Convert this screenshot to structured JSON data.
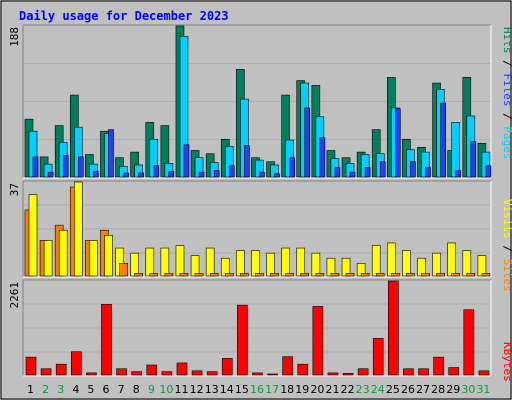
{
  "chart_data": {
    "type": "bar",
    "title": "Daily usage for December 2023",
    "categories": [
      "1",
      "2",
      "3",
      "4",
      "5",
      "6",
      "7",
      "8",
      "9",
      "10",
      "11",
      "12",
      "13",
      "14",
      "15",
      "16",
      "17",
      "18",
      "19",
      "20",
      "21",
      "22",
      "23",
      "24",
      "25",
      "26",
      "27",
      "28",
      "29",
      "30",
      "31"
    ],
    "weekend_days": [
      "2",
      "3",
      "9",
      "10",
      "16",
      "17",
      "23",
      "24",
      "30",
      "31"
    ],
    "colors": {
      "background": "#c0c0c0",
      "hits": "#007f5f",
      "files": "#00d0ff",
      "pages": "#2040ff",
      "visits": "#ff8000",
      "sites": "#ffff00",
      "kbytes": "#ff0000",
      "weekday_label": "#000000",
      "weekend_label": "#00a040",
      "title": "#0000ff"
    },
    "panels": [
      {
        "name": "hits-files-pages",
        "max_label": "188",
        "ylim": [
          0,
          188
        ],
        "legend": [
          {
            "label": "Hits",
            "color": "#007f5f"
          },
          {
            "label": "Files",
            "color": "#2040ff"
          },
          {
            "label": "Pages",
            "color": "#00d0ff"
          }
        ],
        "series": [
          {
            "name": "Hits",
            "values": [
              72,
              25,
              64,
              102,
              28,
              57,
              24,
              31,
              68,
              64,
              188,
              33,
              29,
              47,
              134,
              24,
              19,
              102,
              120,
              114,
              33,
              24,
              31,
              59,
              124,
              47,
              37,
              117,
              33,
              124,
              42
            ]
          },
          {
            "name": "Files",
            "values": [
              57,
              16,
              43,
              62,
              16,
              54,
              13,
              15,
              47,
              17,
              175,
              24,
              18,
              38,
              97,
              21,
              15,
              46,
              117,
              75,
              23,
              17,
              28,
              29,
              86,
              34,
              31,
              109,
              68,
              76,
              31
            ]
          },
          {
            "name": "Pages",
            "values": [
              25,
              6,
              27,
              25,
              7,
              59,
              5,
              5,
              14,
              7,
              40,
              6,
              8,
              14,
              39,
              6,
              4,
              24,
              86,
              49,
              12,
              6,
              12,
              19,
              85,
              19,
              12,
              92,
              8,
              44,
              14
            ]
          }
        ]
      },
      {
        "name": "visits-sites",
        "max_label": "37",
        "ylim": [
          0,
          37
        ],
        "legend": [
          {
            "label": "Visits",
            "color": "#ffff00"
          },
          {
            "label": "Sites",
            "color": "#ff8000"
          }
        ],
        "series": [
          {
            "name": "Visits",
            "values": [
              26,
              14,
              20,
              35,
              14,
              18,
              11,
              9,
              11,
              11,
              12,
              8,
              11,
              7,
              10,
              10,
              9,
              11,
              11,
              9,
              7,
              7,
              5,
              12,
              13,
              10,
              7,
              9,
              13,
              10,
              8
            ]
          },
          {
            "name": "Sites",
            "values": [
              32,
              14,
              18,
              37,
              14,
              16,
              5,
              1,
              1,
              1,
              1,
              1,
              1,
              1,
              1,
              1,
              1,
              1,
              1,
              1,
              1,
              1,
              1,
              1,
              1,
              1,
              1,
              1,
              1,
              1,
              1
            ]
          }
        ]
      },
      {
        "name": "kbytes",
        "max_label": "2261",
        "ylim": [
          0,
          2261
        ],
        "legend": [
          {
            "label": "KBytes",
            "color": "#ff0000"
          }
        ],
        "series": [
          {
            "name": "KBytes",
            "values": [
              430,
              150,
              260,
              560,
              50,
              1700,
              150,
              80,
              240,
              80,
              290,
              100,
              80,
              400,
              1680,
              50,
              25,
              440,
              260,
              1650,
              50,
              40,
              150,
              880,
              2261,
              150,
              150,
              430,
              180,
              1570,
              100
            ]
          }
        ]
      }
    ]
  }
}
